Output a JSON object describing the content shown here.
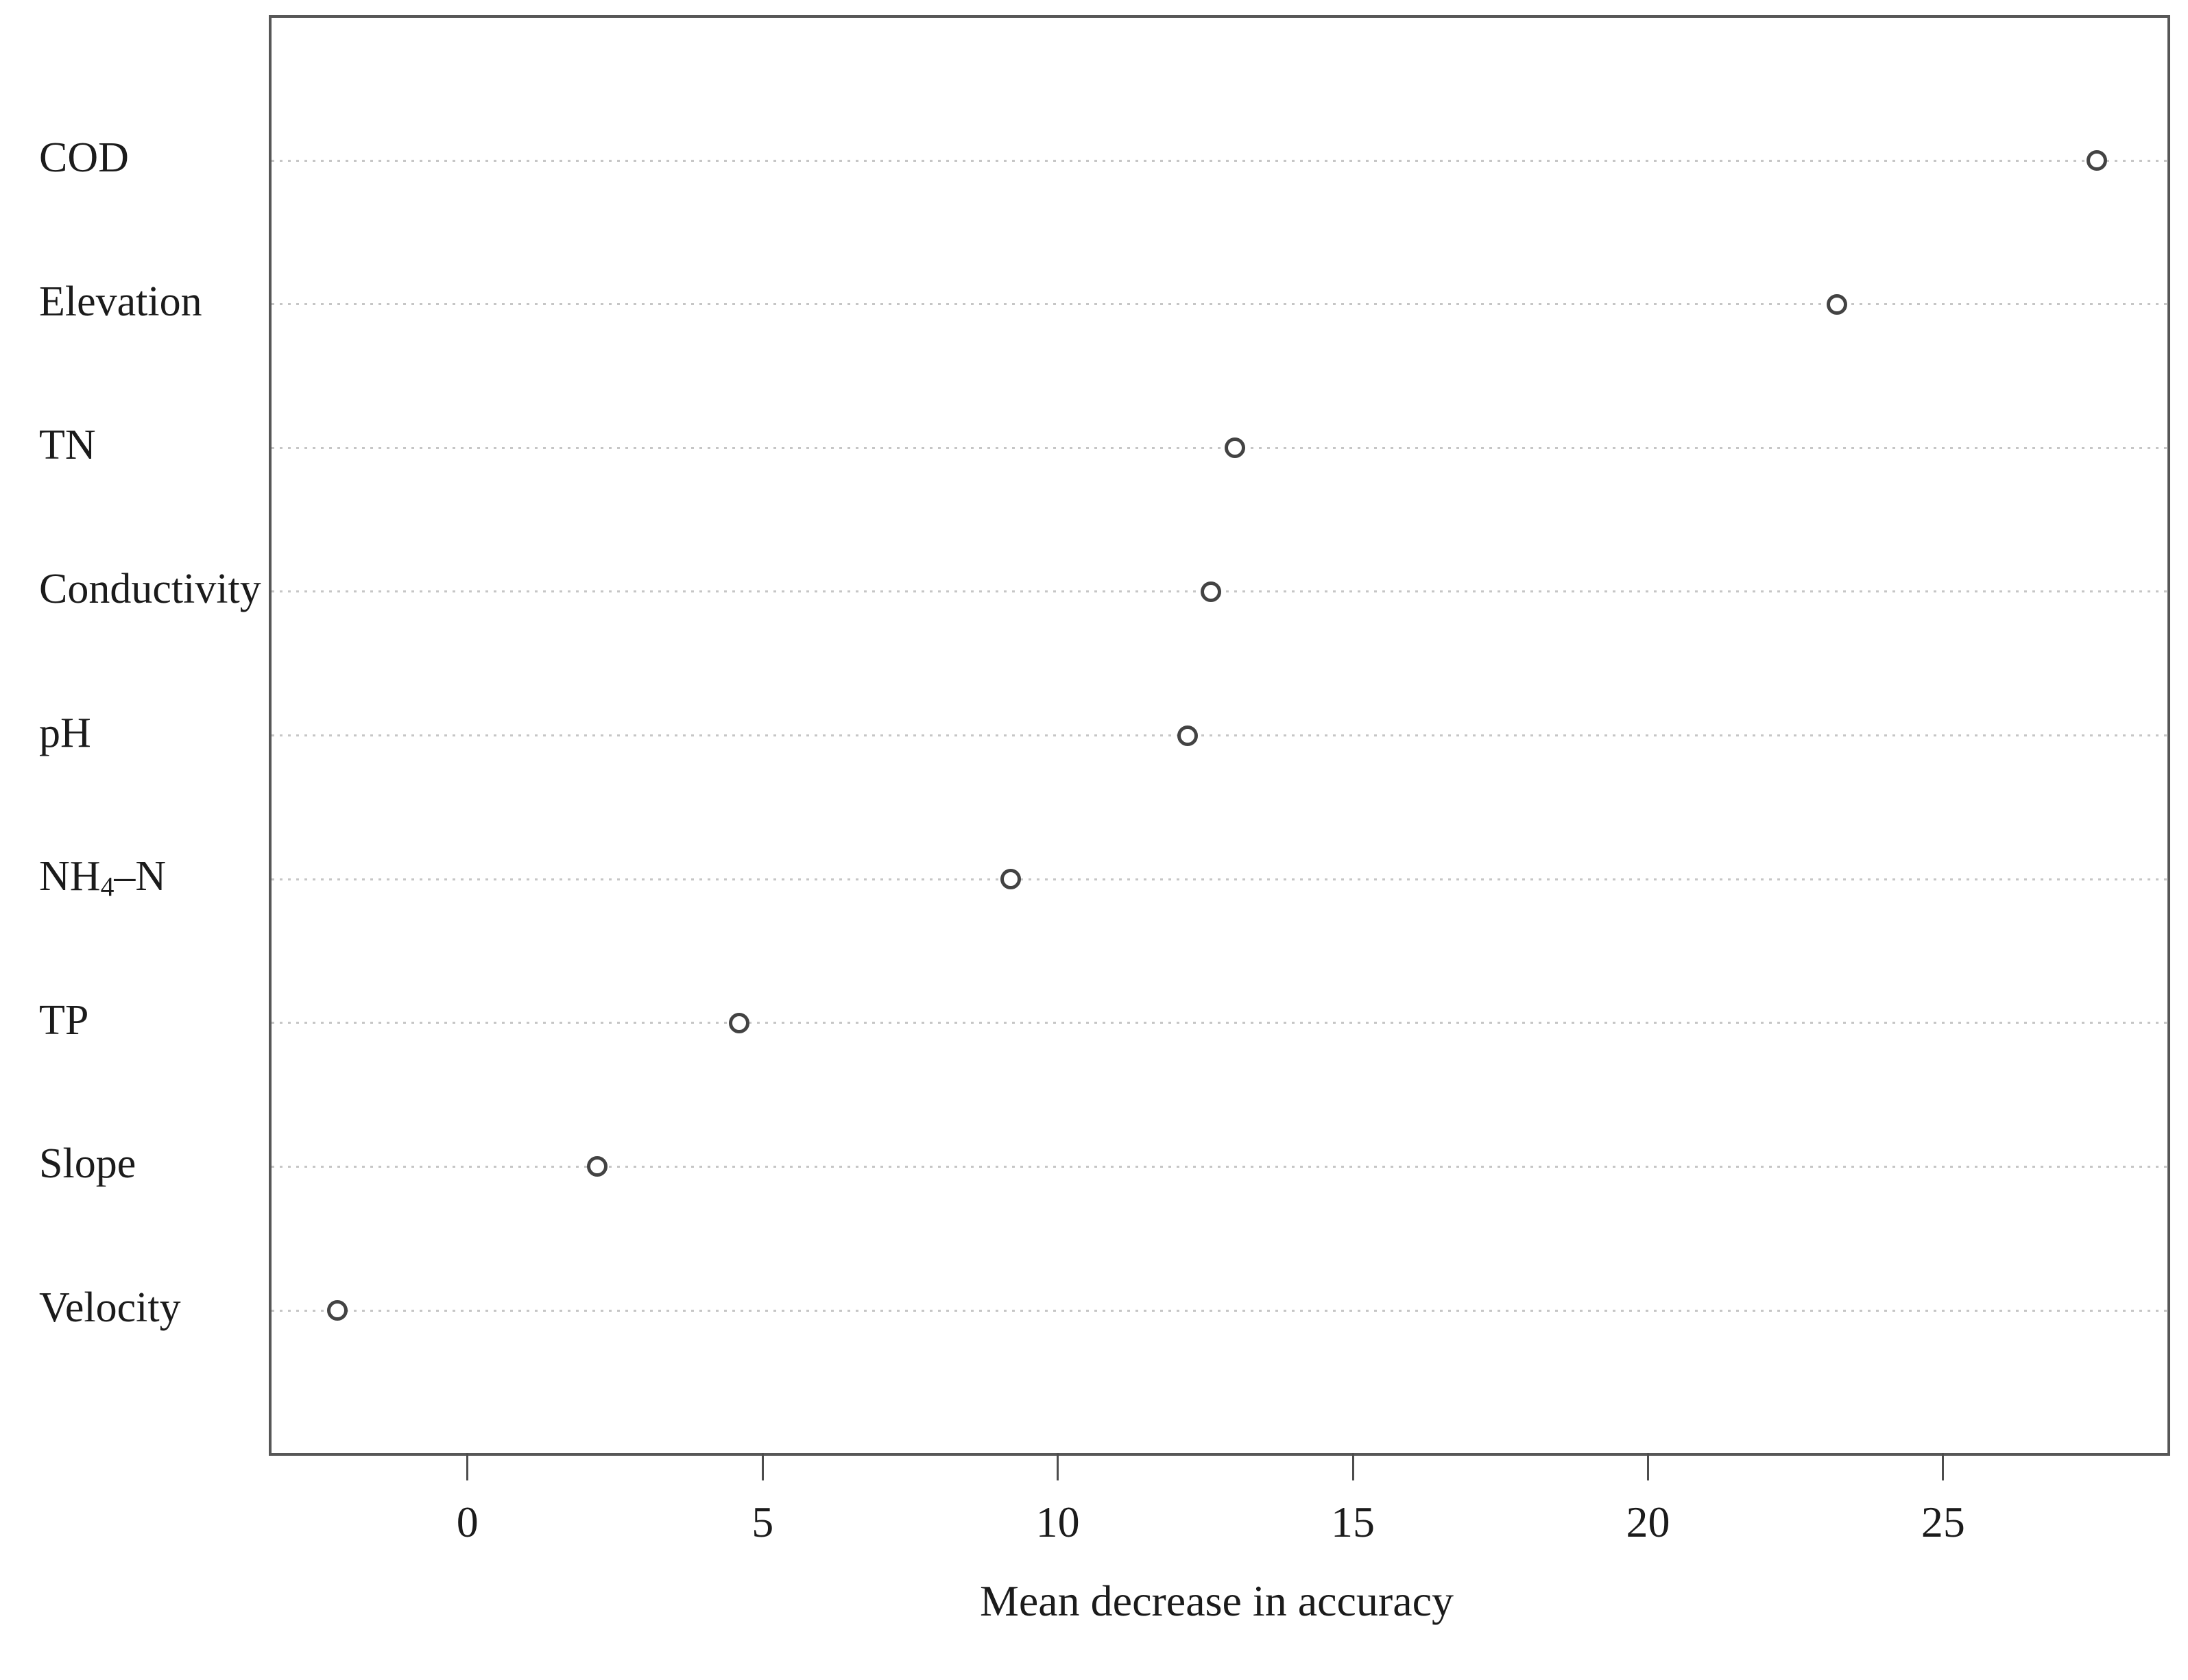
{
  "chart_data": {
    "type": "scatter",
    "variant": "dot-chart-horizontal",
    "title": "",
    "xlabel": "Mean decrease in accuracy",
    "ylabel": "",
    "categories": [
      "COD",
      "Elevation",
      "TN",
      "Conductivity",
      "pH",
      "NH4–N",
      "TP",
      "Slope",
      "Velocity"
    ],
    "values": [
      27.6,
      23.2,
      13.0,
      12.6,
      12.2,
      9.2,
      4.6,
      2.2,
      -2.2
    ],
    "nh4_label": {
      "pre": "NH",
      "sub": "4",
      "post": "–N"
    },
    "x_ticks": [
      0,
      5,
      10,
      15,
      20,
      25
    ],
    "xlim": [
      -3.32,
      28.8
    ],
    "grid": "horizontal-dotted",
    "legend": "none",
    "point_style": {
      "shape": "open-circle",
      "stroke": "#434343",
      "fill": "#ffffff"
    },
    "colors": {
      "frame": "#575757",
      "gridline": "#c6c6c6",
      "text": "#1b1b1b",
      "background": "#ffffff"
    }
  }
}
